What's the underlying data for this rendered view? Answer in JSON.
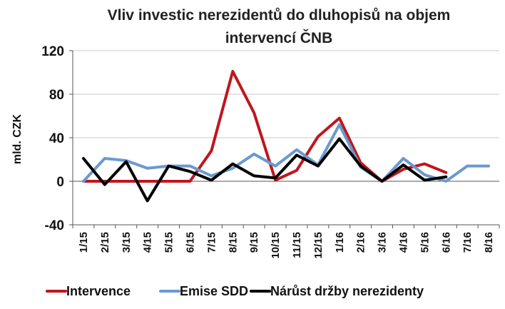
{
  "chart_data": {
    "type": "line",
    "title_lines": [
      "Vliv investic nerezidentů do dluhopisů na objem",
      "intervencí ČNB"
    ],
    "ylabel": "mld. CZK",
    "xlabel": "",
    "ylim": [
      -40,
      120
    ],
    "yticks": [
      "-40",
      "0",
      "40",
      "80",
      "120"
    ],
    "ytick_values": [
      -40,
      0,
      40,
      80,
      120
    ],
    "categories": [
      "1/15",
      "2/15",
      "3/15",
      "4/15",
      "5/15",
      "6/15",
      "7/15",
      "8/15",
      "9/15",
      "10/15",
      "11/15",
      "12/15",
      "1/16",
      "2/16",
      "3/16",
      "4/16",
      "5/16",
      "6/16",
      "7/16",
      "8/16"
    ],
    "grid": "horizontal",
    "legend_position": "bottom",
    "series": [
      {
        "name": "Intervence",
        "color": "#c0161d",
        "values": [
          0,
          0,
          0,
          0,
          0,
          0,
          28,
          101,
          63,
          1,
          10,
          41,
          58,
          17,
          0,
          11,
          16,
          8,
          null,
          null
        ]
      },
      {
        "name": "Emise SDD",
        "color": "#6a99cf",
        "values": [
          0,
          21,
          19,
          12,
          14,
          14,
          5,
          12,
          25,
          14,
          29,
          15,
          52,
          13,
          0,
          21,
          6,
          0,
          14,
          14
        ]
      },
      {
        "name": "Nárůst držby nerezidenty",
        "color": "#000000",
        "values": [
          21,
          -3,
          18,
          -18,
          14,
          9,
          1,
          16,
          5,
          3,
          24,
          14,
          39,
          14,
          0,
          15,
          1,
          4,
          null,
          null
        ]
      }
    ]
  }
}
